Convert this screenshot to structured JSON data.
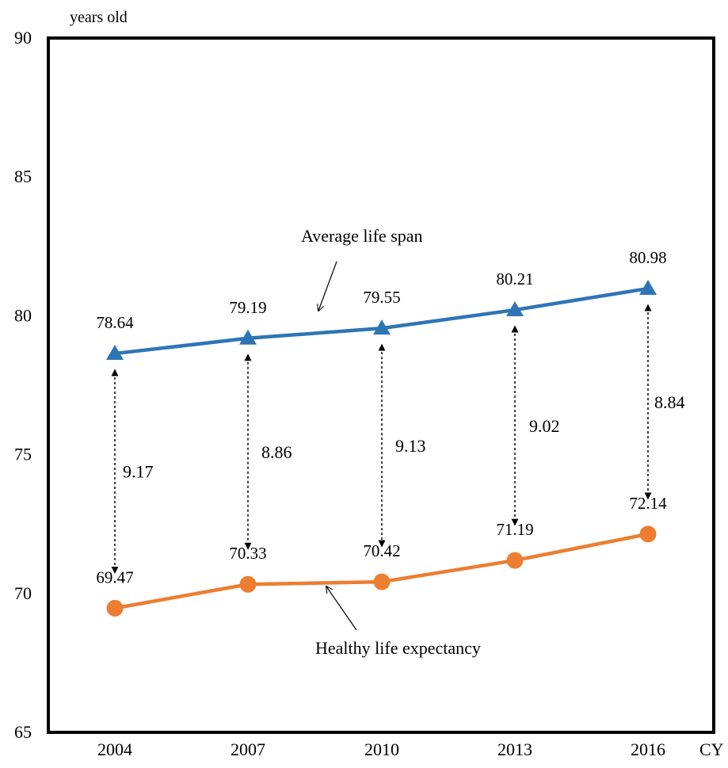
{
  "chart_data": {
    "type": "line",
    "ylabel": "years old",
    "xlabel": "CY",
    "categories": [
      "2004",
      "2007",
      "2010",
      "2013",
      "2016"
    ],
    "ylim": [
      65,
      90
    ],
    "yticks": [
      65,
      70,
      75,
      80,
      85,
      90
    ],
    "grid": false,
    "series": [
      {
        "name": "Average life span",
        "values": [
          78.64,
          79.19,
          79.55,
          80.21,
          80.98
        ],
        "value_labels": [
          "78.64",
          "79.19",
          "79.55",
          "80.21",
          "80.98"
        ],
        "color": "#2e75b6",
        "marker": "triangle"
      },
      {
        "name": "Healthy life expectancy",
        "values": [
          69.47,
          70.33,
          70.42,
          71.19,
          72.14
        ],
        "value_labels": [
          "69.47",
          "70.33",
          "70.42",
          "71.19",
          "72.14"
        ],
        "color": "#ed7d31",
        "marker": "circle"
      }
    ],
    "differences": [
      "9.17",
      "8.86",
      "9.13",
      "9.02",
      "8.84"
    ]
  }
}
